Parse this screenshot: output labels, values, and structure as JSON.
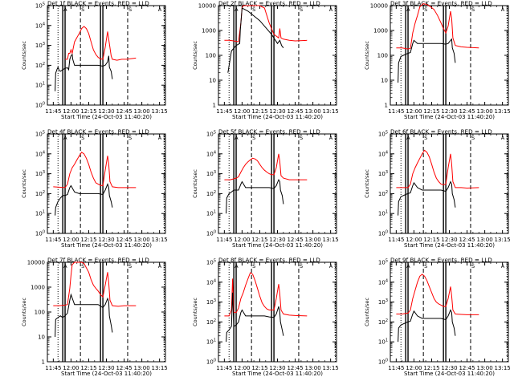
{
  "figure": {
    "ylabel": "Counts/sec",
    "xlabel": "Start Time (24-Oct-03 11:40:20)",
    "x_ticks": [
      "11:45",
      "12:00",
      "12:15",
      "12:30",
      "12:45",
      "13:00",
      "13:15"
    ],
    "flag_labels": [
      "A",
      "S",
      "S",
      "A"
    ],
    "colors": {
      "events": "#000000",
      "lld": "#ff0000"
    }
  },
  "chart_data": [
    {
      "type": "line",
      "title": "Det 1f BLACK = Events, RED = LLD",
      "ylim": [
        1,
        100000
      ],
      "ytick_labels": [
        "10^0",
        "10^1",
        "10^2",
        "10^3",
        "10^4",
        "10^5"
      ],
      "xlabel": "Start Time (24-Oct-03 11:40:20)",
      "ylabel": "Counts/sec",
      "series": [
        {
          "name": "LLD",
          "x": [
            10,
            12,
            13,
            14,
            15,
            16,
            18,
            20,
            22,
            24,
            26,
            28,
            30,
            32,
            34,
            36,
            38,
            40,
            42,
            44,
            46,
            47,
            49,
            50,
            54,
            58,
            62,
            70
          ],
          "y": [
            200,
            200,
            400,
            400,
            600,
            400,
            1500,
            2500,
            4000,
            7000,
            9000,
            7000,
            4000,
            1500,
            600,
            350,
            250,
            210,
            200,
            800,
            5000,
            2000,
            300,
            200,
            180,
            200,
            200,
            230
          ]
        },
        {
          "name": "Events",
          "x": [
            1.5,
            2,
            3,
            4,
            5,
            6,
            8,
            10,
            12,
            13,
            14,
            15,
            16,
            16.5,
            18,
            22,
            26,
            30,
            34,
            38,
            42,
            44,
            46,
            47,
            47.5,
            49,
            50
          ],
          "y": [
            5,
            40,
            60,
            80,
            55,
            50,
            60,
            70,
            75,
            60,
            200,
            300,
            350,
            200,
            100,
            100,
            100,
            100,
            100,
            100,
            90,
            100,
            150,
            300,
            80,
            50,
            20
          ]
        }
      ]
    },
    {
      "type": "line",
      "title": "Det 2f BLACK = Events, RED = LLD",
      "ylim": [
        1,
        10000
      ],
      "ytick_labels": [
        "1",
        "10",
        "100",
        "1000",
        "10000"
      ],
      "xlabel": "Start Time (24-Oct-03 11:40:20)",
      "ylabel": "Counts/sec",
      "series": [
        {
          "name": "LLD",
          "x": [
            0,
            4,
            8,
            12,
            14,
            15,
            16,
            18,
            22,
            26,
            30,
            34,
            38,
            42,
            46,
            47,
            48,
            50,
            55,
            60,
            70
          ],
          "y": [
            400,
            400,
            380,
            350,
            2000,
            8000,
            10000,
            10000,
            10000,
            10000,
            10000,
            8000,
            2000,
            700,
            500,
            1200,
            500,
            450,
            400,
            380,
            400
          ]
        },
        {
          "name": "Events",
          "x": [
            3,
            6,
            10,
            13,
            13.5,
            15,
            20,
            30,
            40,
            45,
            47,
            48.5,
            50
          ],
          "y": [
            20,
            150,
            250,
            300,
            1000,
            8000,
            6000,
            2500,
            700,
            300,
            400,
            250,
            200
          ]
        }
      ]
    },
    {
      "type": "line",
      "title": "Det 3f BLACK = Events, RED = LLD",
      "ylim": [
        1,
        10000
      ],
      "ytick_labels": [
        "1",
        "10",
        "100",
        "1000",
        "10000"
      ],
      "xlabel": "Start Time (24-Oct-03 11:40:20)",
      "ylabel": "Counts/sec",
      "series": [
        {
          "name": "LLD",
          "x": [
            0,
            5,
            10,
            12,
            14,
            16,
            18,
            20,
            23,
            26,
            29,
            32,
            35,
            38,
            40,
            42,
            44,
            46,
            47,
            48,
            50,
            55,
            60,
            70
          ],
          "y": [
            200,
            200,
            180,
            190,
            800,
            2000,
            4000,
            9000,
            12000,
            11000,
            9000,
            7000,
            4000,
            2000,
            1200,
            800,
            1500,
            6000,
            3000,
            500,
            250,
            220,
            210,
            200
          ]
        },
        {
          "name": "Events",
          "x": [
            1.5,
            2,
            4,
            6,
            8,
            10,
            12,
            14,
            15,
            18,
            22,
            26,
            30,
            34,
            38,
            42,
            44,
            46,
            47,
            47.5,
            49,
            50
          ],
          "y": [
            8,
            50,
            90,
            100,
            110,
            120,
            130,
            300,
            400,
            300,
            300,
            300,
            300,
            300,
            300,
            280,
            300,
            400,
            450,
            200,
            120,
            50
          ]
        }
      ]
    },
    {
      "type": "line",
      "title": "Det 4f BLACK = Events, RED = LLD",
      "ylim": [
        1,
        100000
      ],
      "ytick_labels": [
        "10^0",
        "10^1",
        "10^2",
        "10^3",
        "10^4",
        "10^5"
      ],
      "xlabel": "Start Time (24-Oct-03 11:40:20)",
      "ylabel": "Counts/sec",
      "series": [
        {
          "name": "LLD",
          "x": [
            0,
            5,
            10,
            12,
            14,
            16,
            18,
            20,
            22,
            24,
            26,
            28,
            30,
            32,
            34,
            36,
            38,
            40,
            42,
            44,
            46,
            47,
            48,
            50,
            55,
            60,
            70
          ],
          "y": [
            220,
            210,
            200,
            300,
            1000,
            2000,
            3000,
            5000,
            8000,
            12000,
            10000,
            6000,
            3000,
            1200,
            600,
            350,
            300,
            260,
            250,
            1500,
            8000,
            3000,
            400,
            220,
            200,
            200,
            200
          ]
        },
        {
          "name": "Events",
          "x": [
            1.5,
            2,
            4,
            6,
            8,
            10,
            12,
            14,
            15,
            18,
            22,
            26,
            30,
            34,
            38,
            42,
            44,
            46,
            47,
            47.5,
            49,
            50
          ],
          "y": [
            8,
            20,
            40,
            60,
            80,
            80,
            90,
            200,
            250,
            120,
            100,
            100,
            100,
            100,
            100,
            90,
            150,
            300,
            200,
            80,
            40,
            20
          ]
        }
      ]
    },
    {
      "type": "line",
      "title": "Det 5f BLACK = Events, RED = LLD",
      "ylim": [
        1,
        100000
      ],
      "ytick_labels": [
        "10^0",
        "10^1",
        "10^2",
        "10^3",
        "10^4",
        "10^5"
      ],
      "xlabel": "Start Time (24-Oct-03 11:40:20)",
      "ylabel": "Counts/sec",
      "series": [
        {
          "name": "LLD",
          "x": [
            0,
            5,
            10,
            12,
            14,
            16,
            18,
            20,
            22,
            24,
            26,
            28,
            30,
            32,
            34,
            36,
            38,
            40,
            42,
            44,
            46,
            47,
            48,
            50,
            55,
            60,
            70
          ],
          "y": [
            500,
            500,
            600,
            700,
            1200,
            2000,
            3000,
            4000,
            5000,
            6000,
            5500,
            4500,
            3000,
            2000,
            1500,
            1200,
            1000,
            900,
            900,
            2000,
            10000,
            4000,
            800,
            600,
            500,
            500,
            500
          ]
        },
        {
          "name": "Events",
          "x": [
            1.5,
            2,
            4,
            6,
            8,
            10,
            12,
            14,
            15,
            18,
            22,
            26,
            30,
            34,
            38,
            42,
            44,
            46,
            47,
            47.5,
            49,
            50
          ],
          "y": [
            10,
            60,
            100,
            120,
            150,
            150,
            150,
            300,
            400,
            200,
            200,
            200,
            200,
            200,
            200,
            180,
            250,
            500,
            400,
            150,
            80,
            30
          ]
        }
      ]
    },
    {
      "type": "line",
      "title": "Det 6f BLACK = Events, RED = LLD",
      "ylim": [
        1,
        100000
      ],
      "ytick_labels": [
        "10^0",
        "10^1",
        "10^2",
        "10^3",
        "10^4",
        "10^5"
      ],
      "xlabel": "Start Time (24-Oct-03 11:40:20)",
      "ylabel": "Counts/sec",
      "series": [
        {
          "name": "LLD",
          "x": [
            0,
            5,
            10,
            12,
            14,
            16,
            18,
            20,
            22,
            24,
            26,
            28,
            30,
            32,
            34,
            36,
            38,
            40,
            42,
            44,
            46,
            47,
            48,
            50,
            55,
            60,
            70
          ],
          "y": [
            200,
            200,
            200,
            300,
            1000,
            2000,
            3500,
            6000,
            10000,
            15000,
            12000,
            7000,
            3000,
            1200,
            600,
            400,
            300,
            280,
            300,
            2000,
            10000,
            3000,
            400,
            200,
            200,
            190,
            200
          ]
        },
        {
          "name": "Events",
          "x": [
            1.5,
            2,
            4,
            6,
            8,
            10,
            12,
            14,
            15,
            18,
            22,
            26,
            30,
            34,
            38,
            42,
            44,
            46,
            47,
            47.5,
            49,
            50
          ],
          "y": [
            8,
            40,
            70,
            80,
            90,
            100,
            110,
            250,
            350,
            200,
            150,
            150,
            150,
            150,
            150,
            130,
            200,
            400,
            300,
            100,
            50,
            20
          ]
        }
      ]
    },
    {
      "type": "line",
      "title": "Det 7f BLACK = Events, RED = LLD",
      "ylim": [
        1,
        10000
      ],
      "ytick_labels": [
        "1",
        "10",
        "100",
        "1000",
        "10000"
      ],
      "xlabel": "Start Time (24-Oct-03 11:40:20)",
      "ylabel": "Counts/sec",
      "series": [
        {
          "name": "LLD",
          "x": [
            0,
            5,
            10,
            12,
            14,
            15,
            16,
            18,
            20,
            22,
            24,
            26,
            28,
            30,
            32,
            34,
            36,
            38,
            40,
            42,
            44,
            46,
            47,
            48,
            50,
            55,
            60,
            70
          ],
          "y": [
            180,
            180,
            190,
            200,
            900,
            3000,
            8000,
            10000,
            10000,
            10000,
            10000,
            9000,
            6000,
            4000,
            2000,
            1200,
            900,
            700,
            500,
            400,
            1200,
            4000,
            1500,
            300,
            180,
            170,
            180,
            180
          ]
        },
        {
          "name": "Events",
          "x": [
            1.5,
            2,
            4,
            6,
            8,
            10,
            12,
            14,
            15,
            18,
            22,
            26,
            30,
            34,
            38,
            42,
            44,
            46,
            47,
            47.5,
            49,
            50
          ],
          "y": [
            10,
            50,
            60,
            70,
            60,
            70,
            90,
            300,
            500,
            200,
            200,
            200,
            200,
            200,
            200,
            150,
            200,
            350,
            250,
            70,
            30,
            15
          ]
        }
      ]
    },
    {
      "type": "line",
      "title": "Det 8f BLACK = Events, RED = LLD",
      "ylim": [
        1,
        100000
      ],
      "ytick_labels": [
        "10^0",
        "10^1",
        "10^2",
        "10^3",
        "10^4",
        "10^5"
      ],
      "xlabel": "Start Time (24-Oct-03 11:40:20)",
      "ylabel": "Counts/sec",
      "series": [
        {
          "name": "LLD",
          "x": [
            0,
            4,
            6,
            7,
            8,
            10,
            12,
            14,
            16,
            18,
            20,
            22,
            24,
            26,
            28,
            30,
            32,
            34,
            36,
            38,
            40,
            42,
            44,
            46,
            47,
            48,
            50,
            55,
            60,
            70
          ],
          "y": [
            200,
            200,
            400,
            15000,
            300,
            300,
            500,
            1500,
            3000,
            7000,
            15000,
            30000,
            25000,
            12000,
            5000,
            2000,
            900,
            600,
            450,
            400,
            400,
            400,
            1500,
            8000,
            2500,
            400,
            250,
            220,
            210,
            200
          ]
        },
        {
          "name": "Events",
          "x": [
            1.5,
            2,
            4,
            6,
            7,
            8,
            10,
            12,
            14,
            15,
            18,
            22,
            26,
            30,
            34,
            38,
            42,
            44,
            46,
            47,
            47.5,
            49,
            50
          ],
          "y": [
            10,
            30,
            40,
            60,
            3000,
            60,
            70,
            100,
            300,
            400,
            200,
            200,
            200,
            200,
            200,
            180,
            170,
            250,
            600,
            300,
            100,
            40,
            20
          ]
        }
      ]
    },
    {
      "type": "line",
      "title": "Det 9f BLACK = Events, RED = LLD",
      "ylim": [
        1,
        100000
      ],
      "ytick_labels": [
        "10^0",
        "10^1",
        "10^2",
        "10^3",
        "10^4",
        "10^5"
      ],
      "xlabel": "Start Time (24-Oct-03 11:40:20)",
      "ylabel": "Counts/sec",
      "series": [
        {
          "name": "LLD",
          "x": [
            0,
            5,
            10,
            12,
            14,
            16,
            18,
            20,
            22,
            24,
            26,
            28,
            30,
            32,
            34,
            36,
            38,
            40,
            42,
            44,
            46,
            47,
            48,
            50,
            55,
            60,
            70
          ],
          "y": [
            250,
            250,
            280,
            400,
            1500,
            4000,
            10000,
            20000,
            25000,
            20000,
            12000,
            6000,
            3000,
            1500,
            1000,
            800,
            700,
            600,
            600,
            1500,
            6000,
            2000,
            400,
            250,
            240,
            230,
            230
          ]
        },
        {
          "name": "Events",
          "x": [
            1.5,
            2,
            4,
            6,
            8,
            10,
            12,
            14,
            15,
            18,
            22,
            26,
            30,
            34,
            38,
            42,
            44,
            46,
            47,
            47.5,
            49,
            50
          ],
          "y": [
            10,
            50,
            70,
            80,
            90,
            100,
            110,
            250,
            350,
            200,
            150,
            150,
            150,
            150,
            150,
            130,
            200,
            400,
            300,
            100,
            50,
            20
          ]
        }
      ]
    }
  ]
}
